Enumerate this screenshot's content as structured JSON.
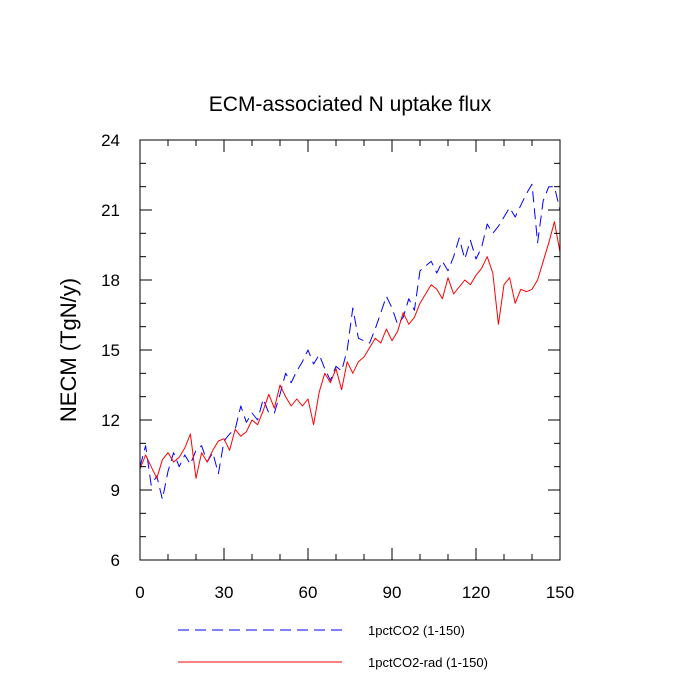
{
  "chart_data": {
    "type": "line",
    "title": "ECM-associated N uptake flux",
    "xlabel": "",
    "ylabel": "NECM  (TgN/y)",
    "xlim": [
      0,
      150
    ],
    "ylim": [
      6,
      24
    ],
    "x_ticks": [
      0,
      30,
      60,
      90,
      120,
      150
    ],
    "y_ticks": [
      6,
      9,
      12,
      15,
      18,
      21,
      24
    ],
    "grid": false,
    "legend_position": "bottom",
    "series": [
      {
        "name": "1pctCO2 (1-150)",
        "color": "#0000ff",
        "dash": "dashed",
        "x": [
          0,
          2,
          4,
          6,
          8,
          10,
          12,
          14,
          16,
          18,
          20,
          22,
          24,
          26,
          28,
          30,
          32,
          34,
          36,
          38,
          40,
          42,
          44,
          46,
          48,
          50,
          52,
          54,
          56,
          58,
          60,
          62,
          64,
          66,
          68,
          70,
          72,
          74,
          76,
          78,
          80,
          82,
          84,
          86,
          88,
          90,
          92,
          94,
          96,
          98,
          100,
          102,
          104,
          106,
          108,
          110,
          112,
          114,
          116,
          118,
          120,
          122,
          124,
          126,
          128,
          130,
          132,
          134,
          136,
          138,
          140,
          142,
          144,
          146,
          148,
          150
        ],
        "values": [
          10.0,
          10.9,
          9.2,
          9.6,
          8.6,
          9.8,
          10.6,
          10.0,
          10.5,
          10.1,
          10.7,
          10.9,
          10.2,
          10.6,
          9.7,
          11.1,
          11.4,
          11.6,
          12.6,
          11.9,
          12.3,
          12.0,
          12.9,
          12.3,
          12.3,
          13.1,
          14.0,
          13.6,
          14.1,
          14.5,
          15.0,
          14.4,
          14.8,
          14.2,
          13.7,
          14.3,
          14.1,
          15.0,
          16.8,
          15.5,
          15.4,
          15.3,
          15.9,
          16.6,
          17.3,
          16.8,
          16.1,
          16.4,
          17.2,
          16.7,
          18.4,
          18.6,
          18.8,
          18.3,
          18.8,
          18.4,
          19.0,
          19.8,
          18.9,
          19.7,
          18.9,
          19.4,
          20.4,
          20.0,
          20.3,
          20.7,
          21.1,
          20.7,
          21.2,
          21.7,
          22.1,
          19.6,
          21.4,
          22.0,
          22.0,
          21.0
        ]
      },
      {
        "name": "1pctCO2-rad (1-150)",
        "color": "#ff0000",
        "dash": "solid",
        "x": [
          0,
          2,
          4,
          6,
          8,
          10,
          12,
          14,
          16,
          18,
          20,
          22,
          24,
          26,
          28,
          30,
          32,
          34,
          36,
          38,
          40,
          42,
          44,
          46,
          48,
          50,
          52,
          54,
          56,
          58,
          60,
          62,
          64,
          66,
          68,
          70,
          72,
          74,
          76,
          78,
          80,
          82,
          84,
          86,
          88,
          90,
          92,
          94,
          96,
          98,
          100,
          102,
          104,
          106,
          108,
          110,
          112,
          114,
          116,
          118,
          120,
          122,
          124,
          126,
          128,
          130,
          132,
          134,
          136,
          138,
          140,
          142,
          144,
          146,
          148,
          150
        ],
        "values": [
          9.9,
          10.5,
          10.0,
          9.5,
          10.3,
          10.6,
          10.2,
          10.4,
          10.8,
          11.4,
          9.5,
          10.6,
          10.2,
          10.7,
          11.1,
          11.2,
          10.7,
          11.6,
          11.3,
          11.5,
          12.0,
          11.8,
          12.4,
          13.1,
          12.5,
          13.5,
          13.0,
          12.6,
          12.9,
          12.6,
          12.9,
          11.8,
          13.2,
          14.0,
          13.6,
          14.2,
          13.3,
          14.5,
          14.0,
          14.5,
          14.7,
          15.1,
          15.5,
          15.3,
          15.9,
          15.4,
          15.8,
          16.6,
          16.1,
          16.4,
          17.0,
          17.4,
          17.8,
          17.6,
          17.2,
          18.1,
          17.4,
          17.7,
          18.0,
          17.8,
          18.2,
          18.5,
          19.0,
          18.3,
          16.1,
          17.8,
          18.1,
          17.0,
          17.6,
          17.5,
          17.6,
          18.0,
          18.8,
          19.6,
          20.5,
          19.2
        ]
      }
    ]
  }
}
